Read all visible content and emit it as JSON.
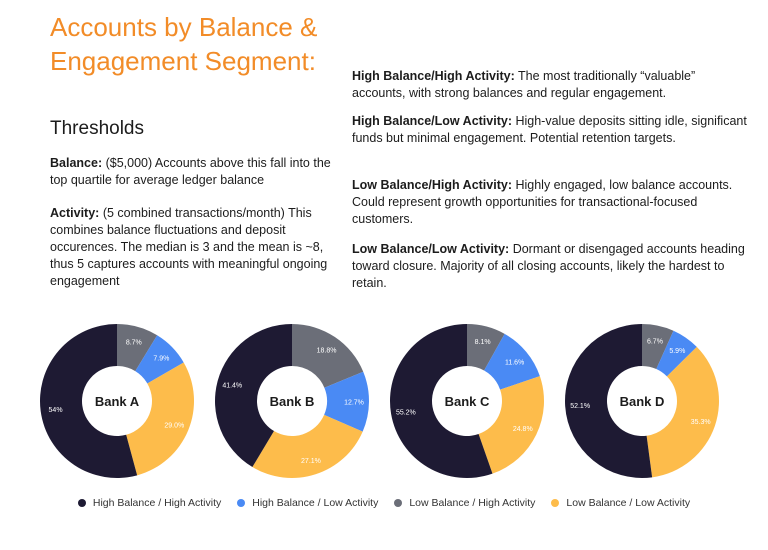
{
  "header": {
    "title": "Accounts by Balance & Engagement Segment:",
    "subtitle": "Thresholds"
  },
  "definitions": [
    {
      "term": "Balance:",
      "text": "($5,000) Accounts above this fall into the top quartile for average ledger balance"
    },
    {
      "term": "Activity:",
      "text": "(5 combined transactions/month) This combines balance fluctuations and deposit occurences. The median is 3 and the mean is ~8, thus 5 captures accounts with meaningful ongoing engagement"
    }
  ],
  "segments": [
    {
      "term": "High Balance/High Activity:",
      "text": "The most traditionally “valuable” accounts, with strong balances and regular engagement."
    },
    {
      "term": "High Balance/Low Activity:",
      "text": "High-value deposits sitting idle, significant funds but minimal engagement. Potential retention targets."
    },
    {
      "term": "Low Balance/High Activity:",
      "text": "Highly engaged, low balance accounts. Could represent growth opportunities for transactional-focused customers."
    },
    {
      "term": "Low Balance/Low Activity:",
      "text": "Dormant or disengaged accounts heading toward closure. Majority of all closing accounts, likely the hardest to retain."
    }
  ],
  "colors": {
    "high_high": "#1e1a33",
    "high_low": "#4a8af4",
    "low_high": "#6b6e78",
    "low_low": "#fdbc4b",
    "title": "#f28c28"
  },
  "chart_data": {
    "type": "pie",
    "variant": "donut",
    "legend_position": "bottom",
    "series_names": [
      "High Balance / High Activity",
      "High Balance / Low Activity",
      "Low Balance / High Activity",
      "Low Balance / Low Activity"
    ],
    "charts": [
      {
        "name": "Bank A",
        "values": [
          54,
          7.9,
          8.7,
          29.0
        ],
        "labels": [
          "54%",
          "7.9%",
          "8.7%",
          "29.0%"
        ]
      },
      {
        "name": "Bank B",
        "values": [
          41.4,
          12.7,
          18.8,
          27.1
        ],
        "labels": [
          "41.4%",
          "12.7%",
          "18.8%",
          "27.1%"
        ]
      },
      {
        "name": "Bank C",
        "values": [
          55.2,
          11.6,
          8.1,
          24.8
        ],
        "labels": [
          "55.2%",
          "11.6%",
          "8.1%",
          "24.8%"
        ]
      },
      {
        "name": "Bank D",
        "values": [
          52.1,
          5.9,
          6.7,
          35.3
        ],
        "labels": [
          "52.1%",
          "5.9%",
          "6.7%",
          "35.3%"
        ]
      }
    ]
  }
}
